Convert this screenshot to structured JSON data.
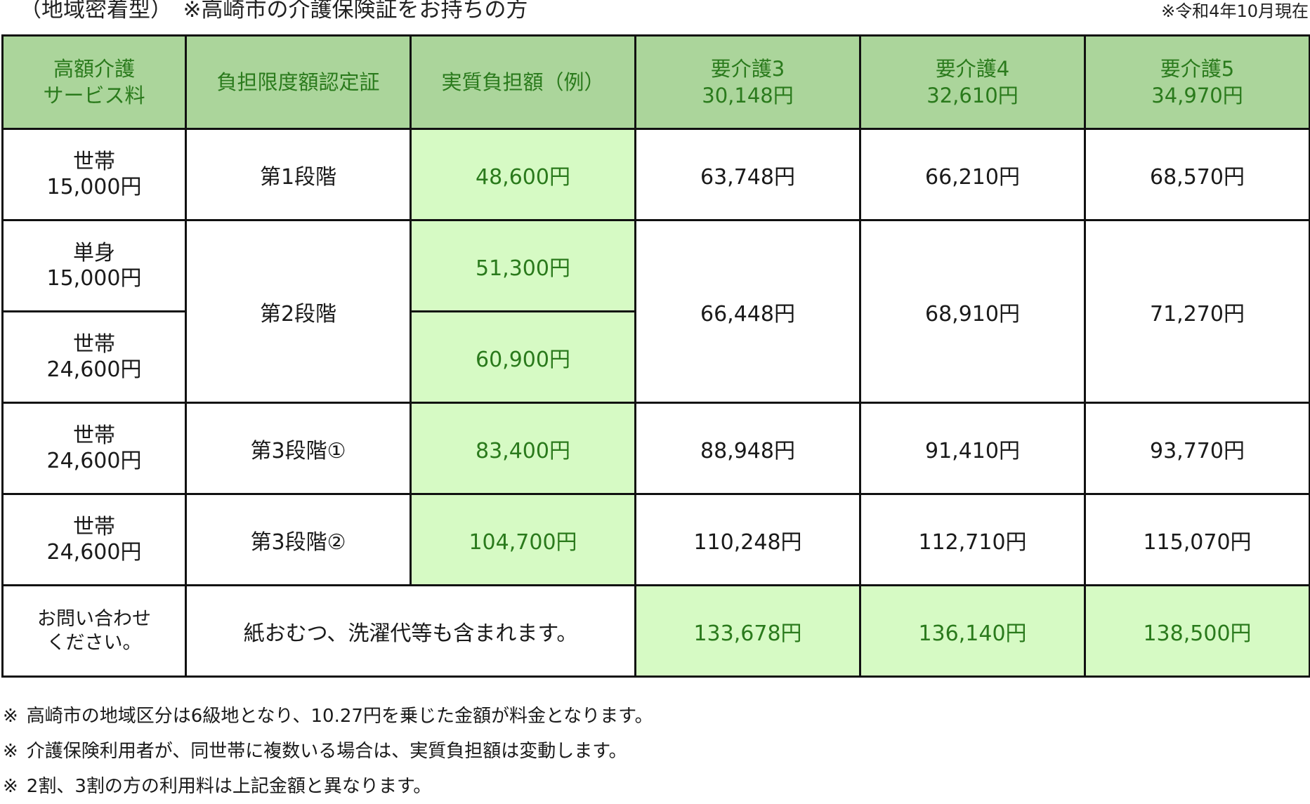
{
  "title": {
    "left": "（地域密着型）　※高崎市の介護保険証をお持ちの方",
    "right": "※令和4年10月現在"
  },
  "header": {
    "col1": [
      "高額介護",
      "サービス料"
    ],
    "col2": "負担限度額認定証",
    "col3": "実質負担額（例）",
    "col4": [
      "要介護3",
      "30,148円"
    ],
    "col5": [
      "要介護4",
      "32,610円"
    ],
    "col6": [
      "要介護5",
      "34,970円"
    ]
  },
  "rows": [
    {
      "service": [
        "世帯",
        "15,000円"
      ],
      "certificate": "第1段階",
      "burden": "48,600円",
      "care3": "63,748円",
      "care4": "66,210円",
      "care5": "68,570円"
    },
    {
      "service": [
        "単身",
        "15,000円"
      ],
      "certificate": "第2段階",
      "burden": "51,300円",
      "care3": "66,448円",
      "care4": "68,910円",
      "care5": "71,270円"
    },
    {
      "service": [
        "世帯",
        "24,600円"
      ],
      "burden": "60,900円"
    },
    {
      "service": [
        "世帯",
        "24,600円"
      ],
      "certificate": "第3段階①",
      "burden": "83,400円",
      "care3": "88,948円",
      "care4": "91,410円",
      "care5": "93,770円"
    },
    {
      "service": [
        "世帯",
        "24,600円"
      ],
      "certificate": "第3段階②",
      "burden": "104,700円",
      "care3": "110,248円",
      "care4": "112,710円",
      "care5": "115,070円"
    }
  ],
  "last_row": {
    "contact": [
      "お問い合わせ",
      "ください。"
    ],
    "note": "紙おむつ、洗濯代等も含まれます。",
    "care3": "133,678円",
    "care4": "136,140円",
    "care5": "138,500円"
  },
  "footnotes": {
    "mark": "※",
    "items": [
      "高崎市の地域区分は6級地となり、10.27円を乗じた金額が料金となります。",
      "介護保険利用者が、同世帯に複数いる場合は、実質負担額は変動します。",
      "2割、3割の方の利用料は上記金額と異なります。"
    ]
  },
  "colors": {
    "header_bg": "#abd59b",
    "highlight_bg": "#d6fac4",
    "green_text": "#2a7a1c",
    "border": "#111111"
  }
}
